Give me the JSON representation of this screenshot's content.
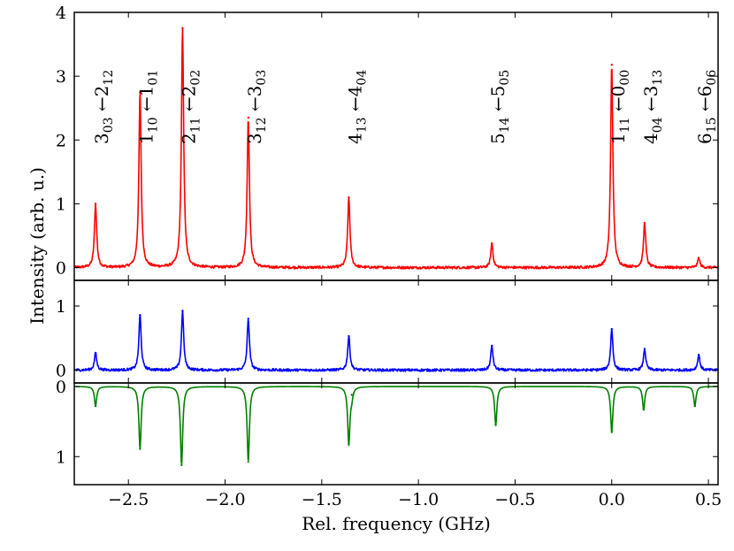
{
  "chart_data": {
    "type": "line",
    "xlabel": "Rel. frequency (GHz)",
    "ylabel": "Intensity (arb. u.)",
    "xlim": [
      -2.78,
      0.55
    ],
    "x_ticks": [
      -2.5,
      -2.0,
      -1.5,
      -1.0,
      -0.5,
      0.0,
      0.5
    ],
    "x_tick_labels": [
      "−2.5",
      "−2.0",
      "−1.5",
      "−1.0",
      "−0.5",
      "0.0",
      "0.5"
    ],
    "panels": [
      {
        "name": "top",
        "series_name": "experiment (top)",
        "color": "#ff0000",
        "ylim": [
          -0.2,
          4.0
        ],
        "inverted": false,
        "y_ticks": [
          0,
          1,
          2,
          3,
          4
        ],
        "y_tick_labels": [
          "0",
          "1",
          "2",
          "3",
          "4"
        ],
        "noise": 0.02,
        "peaks": [
          {
            "x": -2.67,
            "height": 1.0
          },
          {
            "x": -2.44,
            "height": 2.75
          },
          {
            "x": -2.22,
            "height": 3.75
          },
          {
            "x": -1.88,
            "height": 2.35
          },
          {
            "x": -1.36,
            "height": 1.1
          },
          {
            "x": -0.62,
            "height": 0.38
          },
          {
            "x": 0.0,
            "height": 3.18
          },
          {
            "x": 0.17,
            "height": 0.7
          },
          {
            "x": 0.45,
            "height": 0.15
          }
        ],
        "annotations": [
          {
            "x": -2.67,
            "upper": "3",
            "upper_sub": "03",
            "lower": "2",
            "lower_sub": "12"
          },
          {
            "x": -2.44,
            "upper": "1",
            "upper_sub": "10",
            "lower": "1",
            "lower_sub": "01"
          },
          {
            "x": -2.22,
            "upper": "2",
            "upper_sub": "11",
            "lower": "2",
            "lower_sub": "02"
          },
          {
            "x": -1.88,
            "upper": "3",
            "upper_sub": "12",
            "lower": "3",
            "lower_sub": "03"
          },
          {
            "x": -1.36,
            "upper": "4",
            "upper_sub": "13",
            "lower": "4",
            "lower_sub": "04"
          },
          {
            "x": -0.62,
            "upper": "5",
            "upper_sub": "14",
            "lower": "5",
            "lower_sub": "05"
          },
          {
            "x": 0.0,
            "upper": "1",
            "upper_sub": "11",
            "lower": "0",
            "lower_sub": "00"
          },
          {
            "x": 0.17,
            "upper": "4",
            "upper_sub": "04",
            "lower": "3",
            "lower_sub": "13"
          },
          {
            "x": 0.45,
            "upper": "6",
            "upper_sub": "15",
            "lower": "6",
            "lower_sub": "06"
          }
        ]
      },
      {
        "name": "middle",
        "series_name": "experiment (middle)",
        "color": "#0000ff",
        "ylim": [
          -0.2,
          1.4
        ],
        "inverted": false,
        "y_ticks": [
          0,
          1
        ],
        "y_tick_labels": [
          "0",
          "1"
        ],
        "noise": 0.02,
        "peaks": [
          {
            "x": -2.67,
            "height": 0.27
          },
          {
            "x": -2.44,
            "height": 0.86
          },
          {
            "x": -2.22,
            "height": 0.92
          },
          {
            "x": -1.88,
            "height": 0.8
          },
          {
            "x": -1.36,
            "height": 0.53
          },
          {
            "x": -0.62,
            "height": 0.38
          },
          {
            "x": 0.0,
            "height": 0.64
          },
          {
            "x": 0.17,
            "height": 0.33
          },
          {
            "x": 0.45,
            "height": 0.24
          }
        ]
      },
      {
        "name": "bottom",
        "series_name": "simulation (inverted)",
        "color": "#008000",
        "ylim": [
          -0.05,
          1.4
        ],
        "inverted": true,
        "y_ticks": [
          0,
          1
        ],
        "y_tick_labels": [
          "0",
          "1"
        ],
        "noise": 0,
        "peaks": [
          {
            "x": -2.67,
            "height": 0.28
          },
          {
            "x": -2.44,
            "height": 0.89
          },
          {
            "x": -2.225,
            "height": 1.12
          },
          {
            "x": -1.88,
            "height": 1.07
          },
          {
            "x": -1.36,
            "height": 0.82
          },
          {
            "x": -1.345,
            "height": 0.12
          },
          {
            "x": -0.6,
            "height": 0.55
          },
          {
            "x": 0.0,
            "height": 0.65
          },
          {
            "x": 0.165,
            "height": 0.33
          },
          {
            "x": 0.43,
            "height": 0.28
          }
        ]
      }
    ]
  }
}
